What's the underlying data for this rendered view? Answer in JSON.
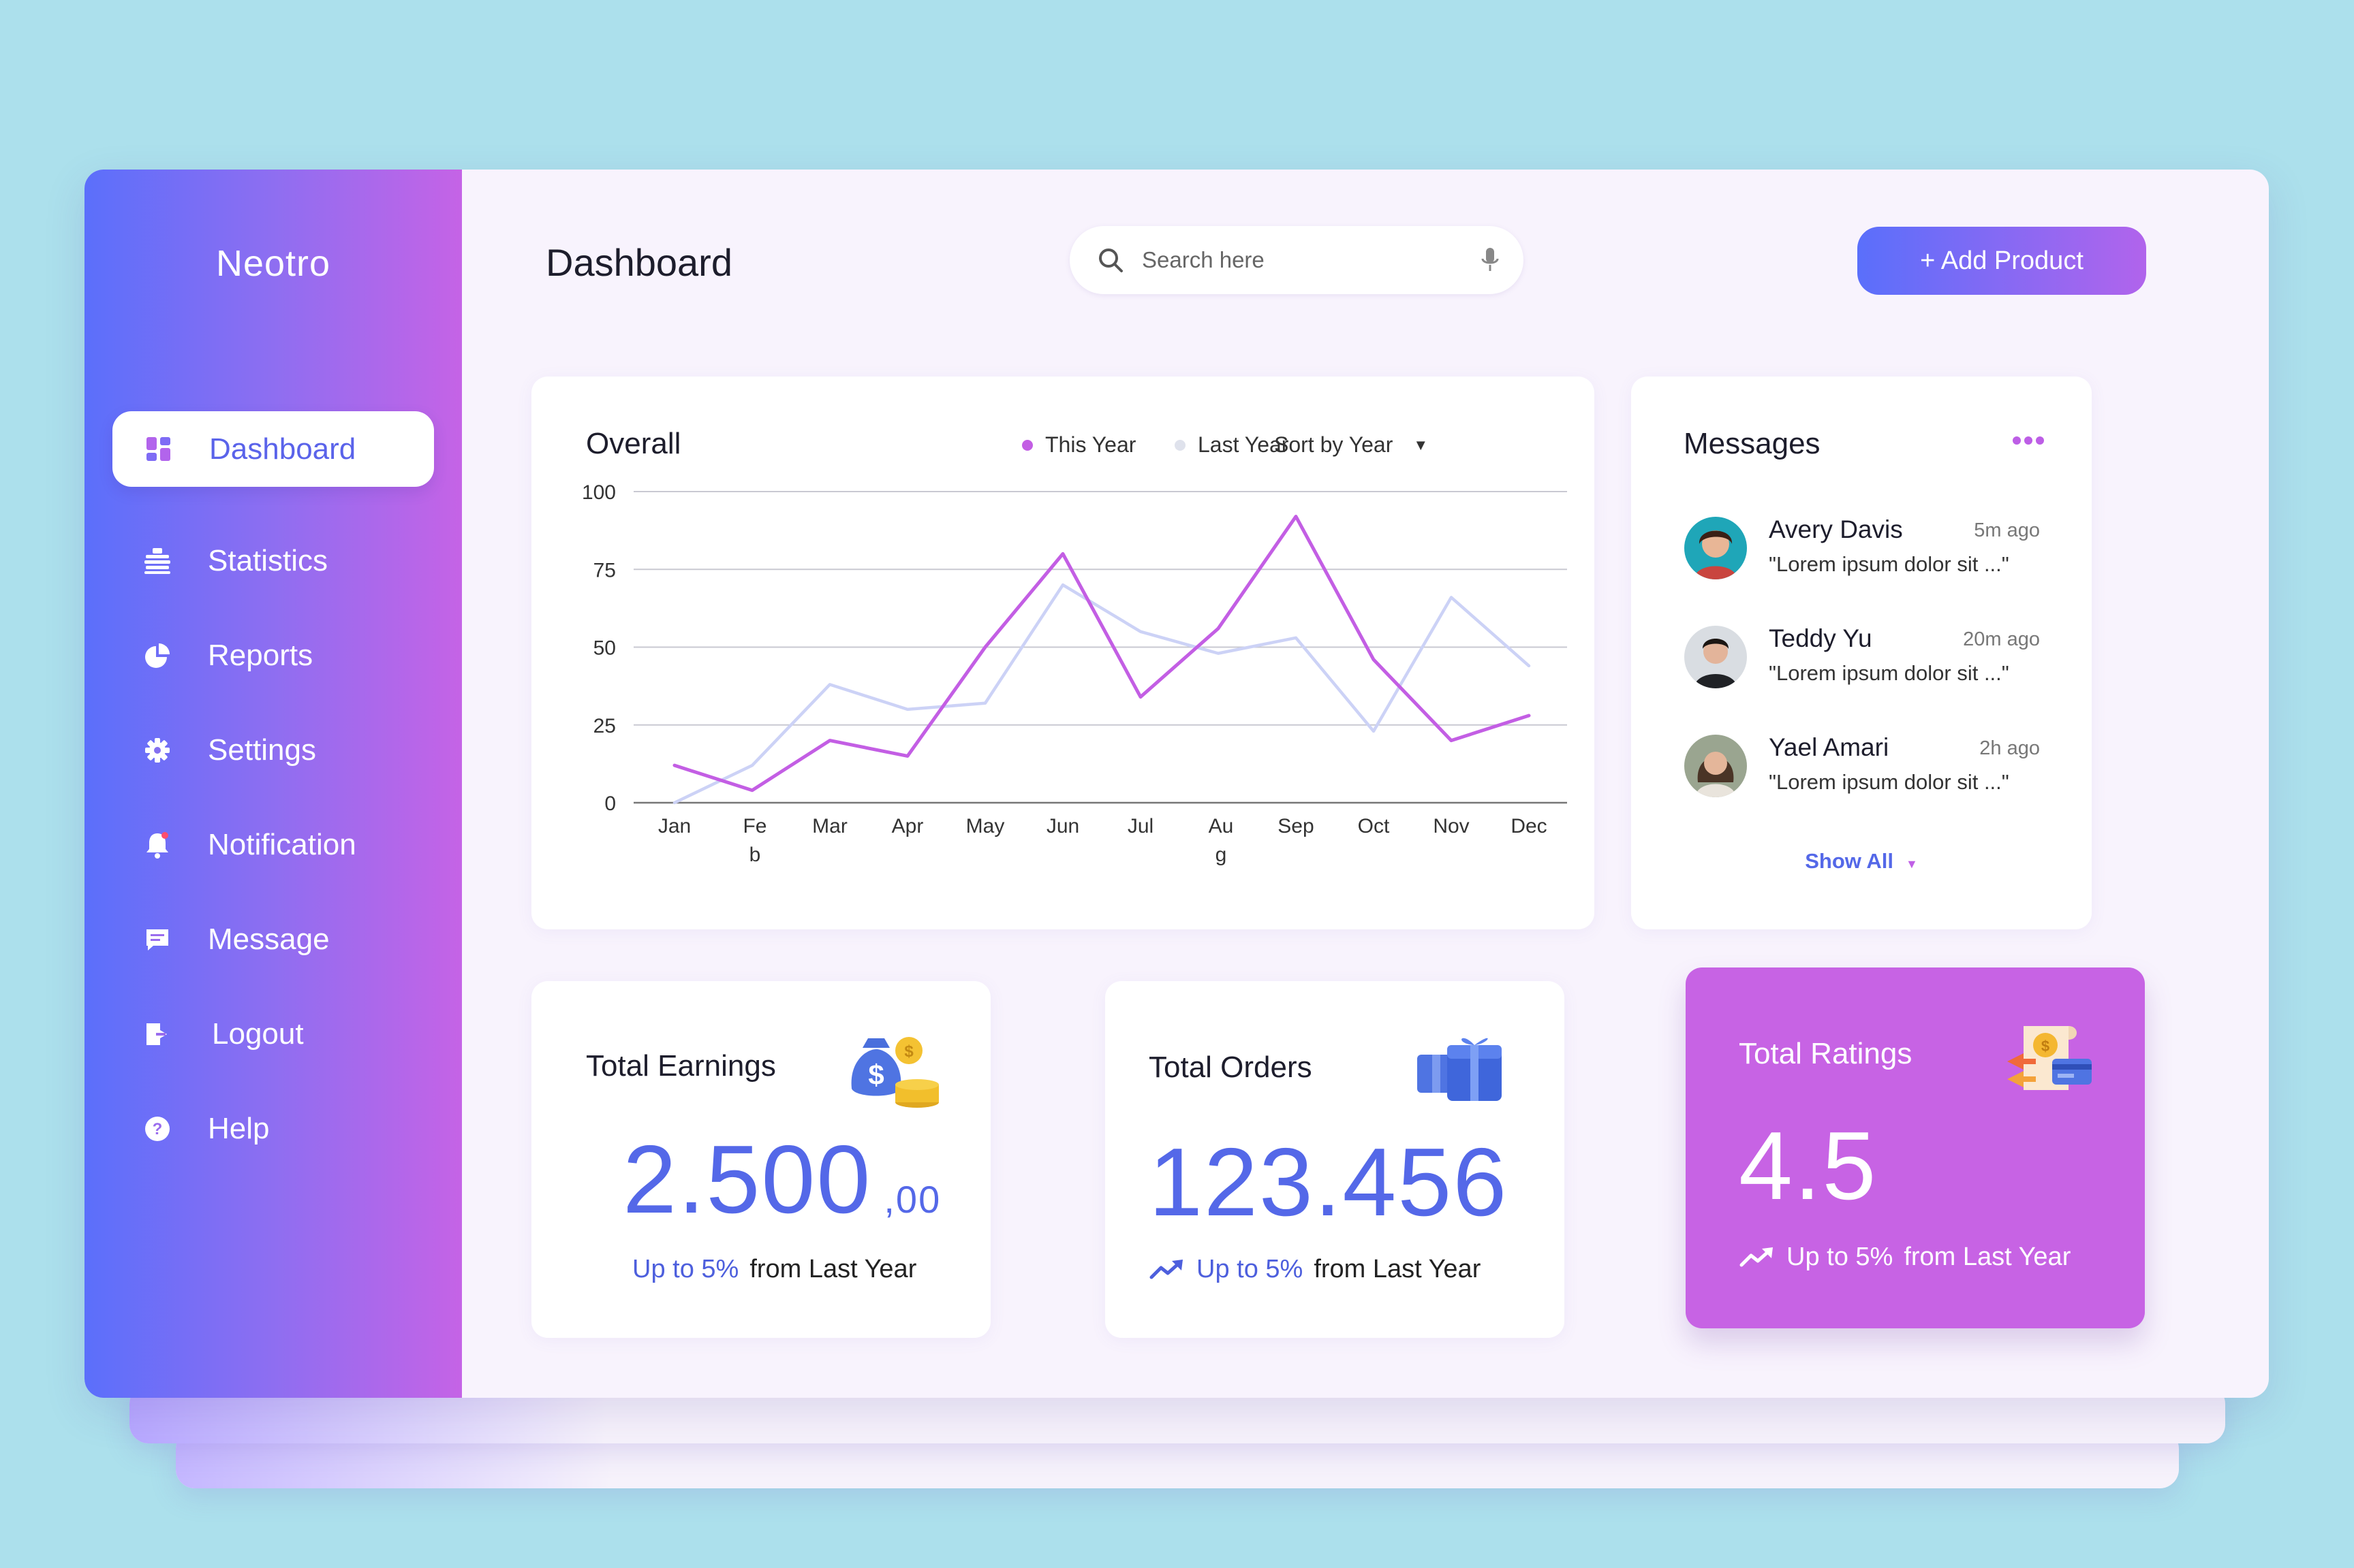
{
  "app_name": "Neotro",
  "sidebar": {
    "items": [
      {
        "label": "Dashboard",
        "icon": "dashboard-grid-icon",
        "active": true
      },
      {
        "label": "Statistics",
        "icon": "statistics-icon"
      },
      {
        "label": "Reports",
        "icon": "pie-chart-icon"
      },
      {
        "label": "Settings",
        "icon": "gear-icon"
      },
      {
        "label": "Notification",
        "icon": "bell-icon"
      },
      {
        "label": "Message",
        "icon": "chat-icon"
      },
      {
        "label": "Logout",
        "icon": "logout-icon"
      },
      {
        "label": "Help",
        "icon": "help-icon"
      }
    ]
  },
  "header": {
    "title": "Dashboard",
    "search_placeholder": "Search here",
    "add_button": "+ Add Product"
  },
  "overall": {
    "title": "Overall",
    "legend_this_year": "This Year",
    "legend_last_year": "Last Year",
    "sort_label": "Sort by Year"
  },
  "chart_data": {
    "type": "line",
    "categories": [
      "Jan",
      "Feb",
      "Mar",
      "Apr",
      "May",
      "Jun",
      "Jul",
      "Aug",
      "Sep",
      "Oct",
      "Nov",
      "Dec"
    ],
    "category_display": [
      [
        "Jan"
      ],
      [
        "Fe",
        "b"
      ],
      [
        "Mar"
      ],
      [
        "Apr"
      ],
      [
        "May"
      ],
      [
        "Jun"
      ],
      [
        "Jul"
      ],
      [
        "Au",
        "g"
      ],
      [
        "Sep"
      ],
      [
        "Oct"
      ],
      [
        "Nov"
      ],
      [
        "Dec"
      ]
    ],
    "series": [
      {
        "name": "This Year",
        "color": "#c35ee4",
        "values": [
          12,
          4,
          20,
          15,
          50,
          80,
          34,
          56,
          92,
          46,
          20,
          28
        ]
      },
      {
        "name": "Last Year",
        "color": "#ccd2f6",
        "values": [
          0,
          12,
          38,
          30,
          32,
          70,
          55,
          48,
          53,
          23,
          66,
          44
        ]
      }
    ],
    "yticks": [
      0,
      25,
      50,
      75,
      100
    ],
    "ylim": [
      0,
      100
    ],
    "grid": true,
    "legend_position": "top"
  },
  "messages": {
    "title": "Messages",
    "items": [
      {
        "name": "Avery Davis",
        "time": "5m ago",
        "text": "\"Lorem ipsum dolor sit ...\""
      },
      {
        "name": "Teddy Yu",
        "time": "20m ago",
        "text": "\"Lorem ipsum dolor sit ...\""
      },
      {
        "name": "Yael Amari",
        "time": "2h ago",
        "text": "\"Lorem ipsum dolor sit ...\""
      }
    ],
    "show_all": "Show All"
  },
  "stats": {
    "earnings": {
      "title": "Total Earnings",
      "value": "2.500",
      "decimals": ",00",
      "highlight": "Up to 5%",
      "suffix": "from Last Year"
    },
    "orders": {
      "title": "Total Orders",
      "value": "123.456",
      "highlight": "Up to 5%",
      "suffix": "from Last Year"
    },
    "ratings": {
      "title": "Total Ratings",
      "value": "4.5",
      "highlight": "Up to 5%",
      "suffix": "from Last Year"
    }
  },
  "colors": {
    "accent_blue": "#5468e8",
    "accent_purple": "#c763e4",
    "background": "#ace0ec"
  }
}
